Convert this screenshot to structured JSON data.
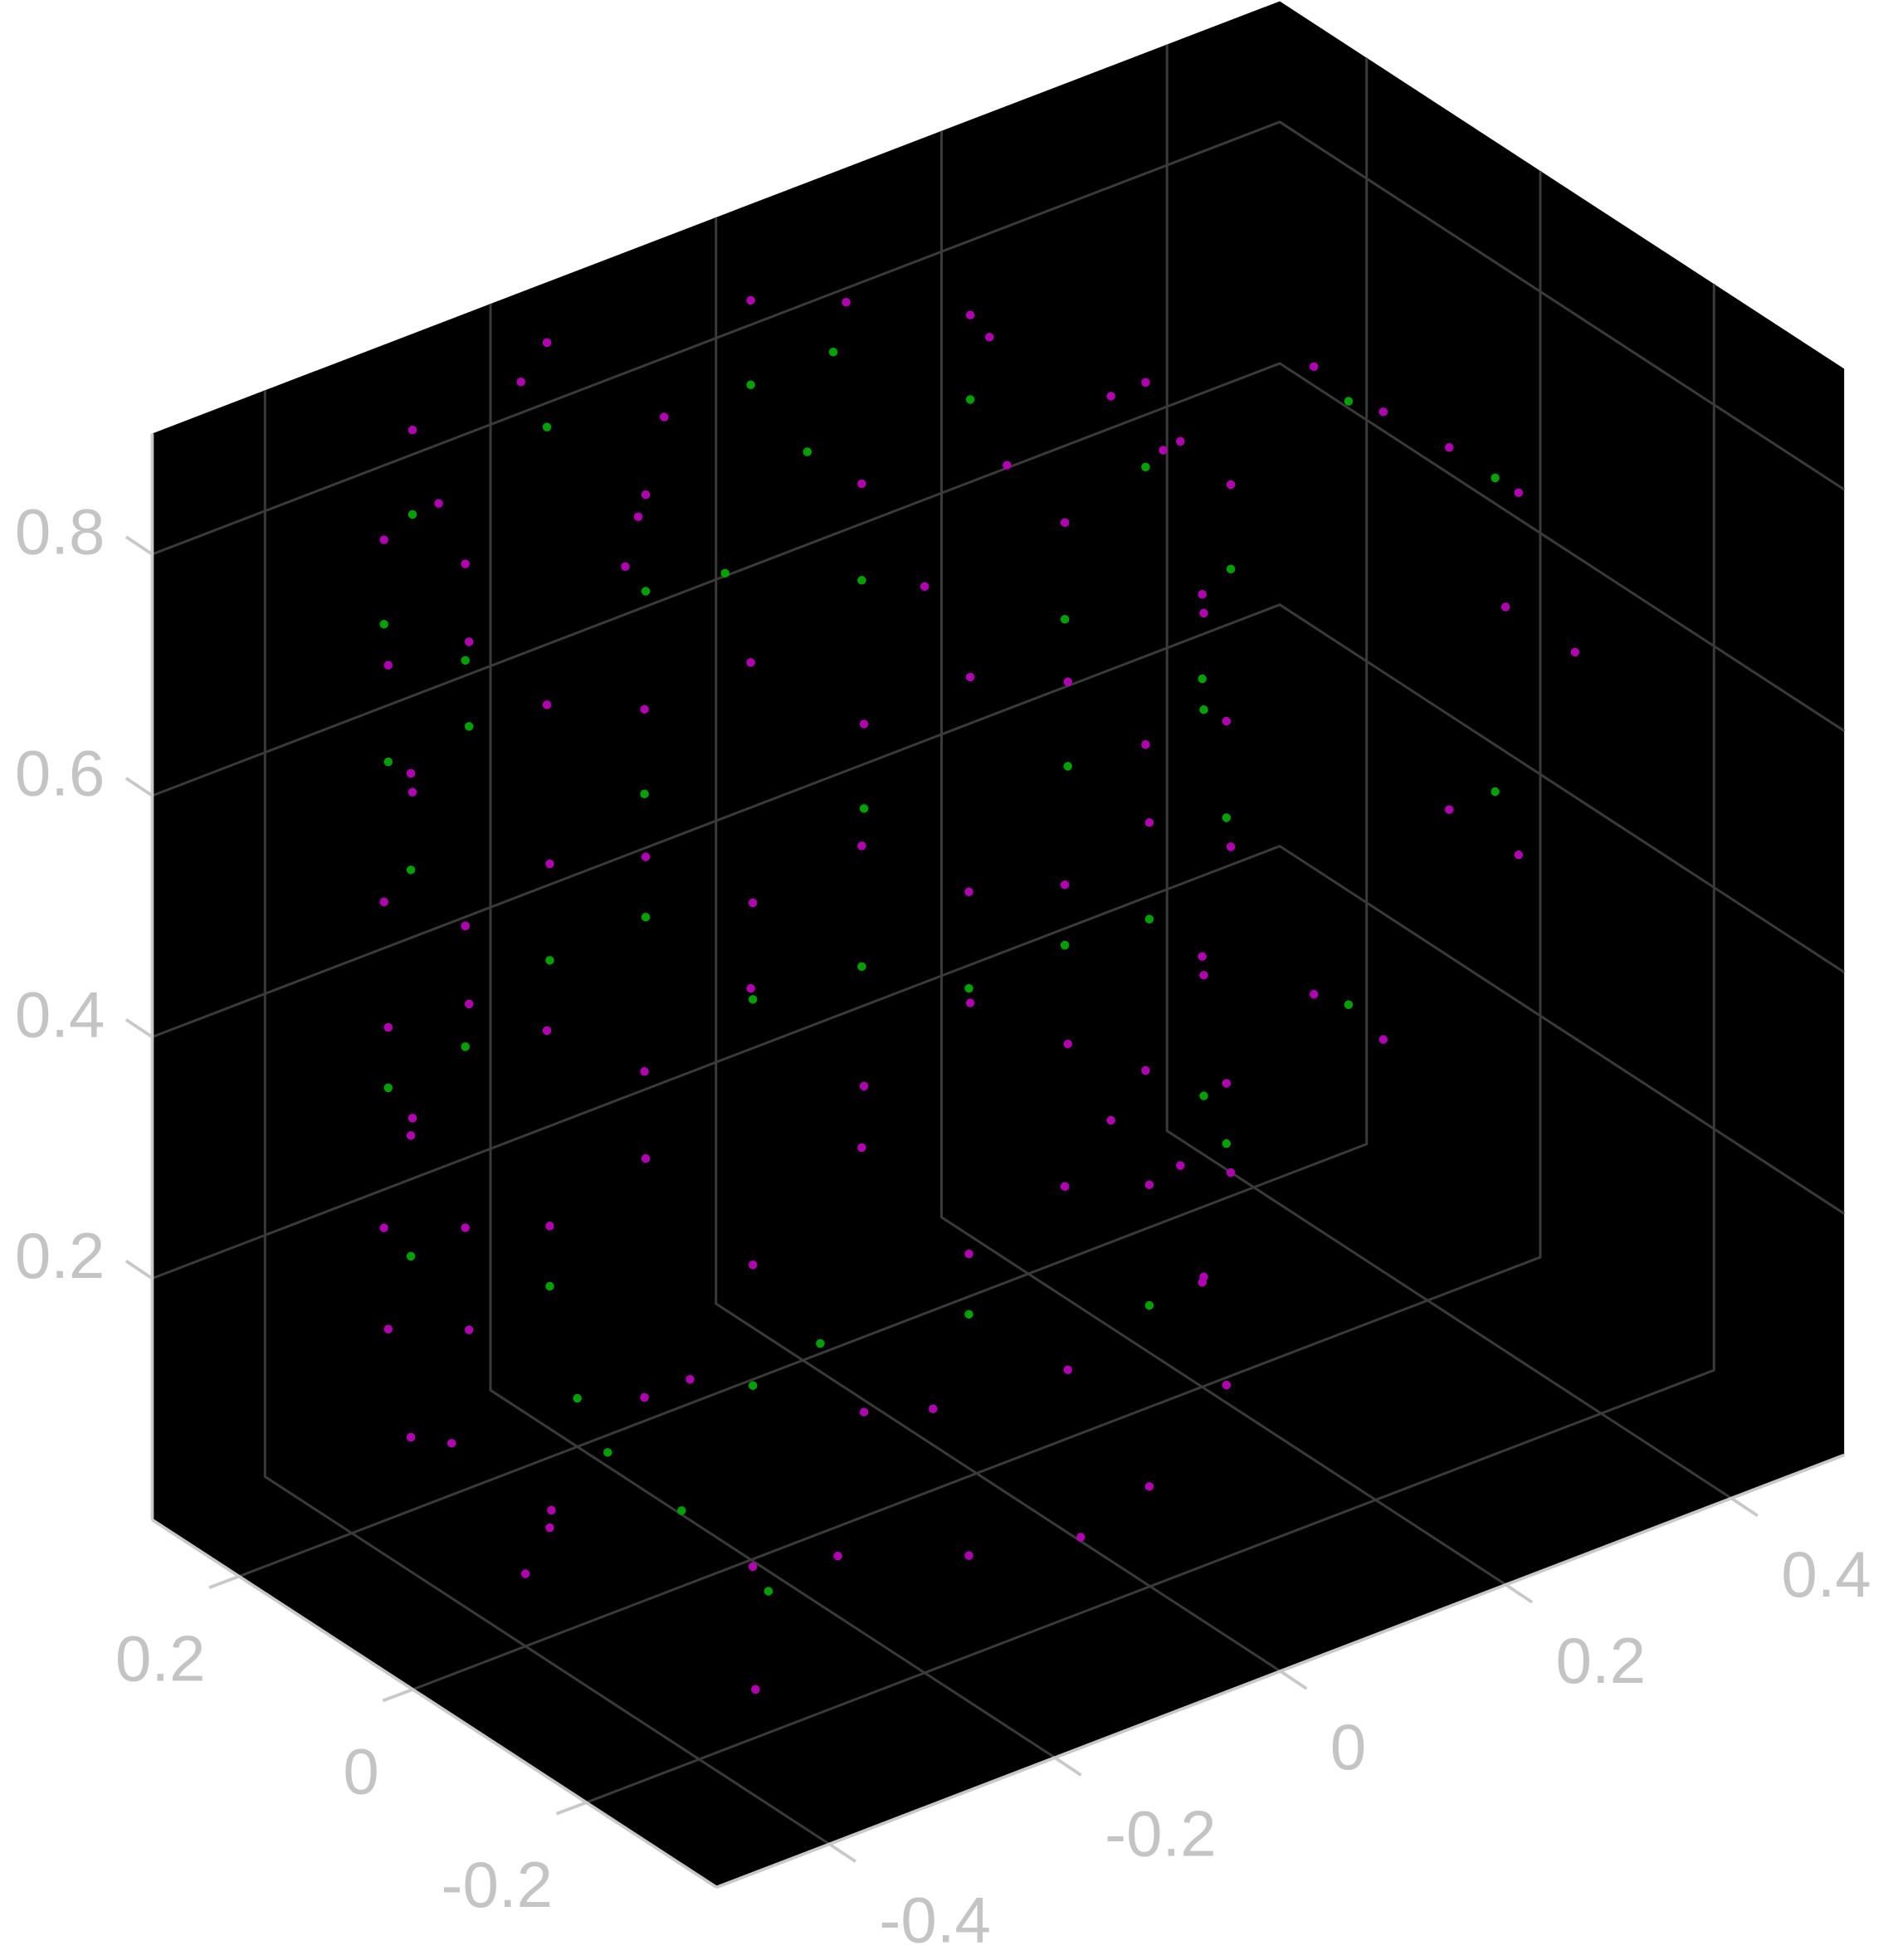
{
  "chart_data": {
    "type": "scatter3d",
    "grid": true,
    "xlim": [
      -0.35,
      0.3
    ],
    "ylim": [
      -0.5,
      0.5
    ],
    "zlim": [
      0,
      0.9
    ],
    "xticks": [
      -0.2,
      0,
      0.2
    ],
    "yticks": [
      -0.4,
      -0.2,
      0,
      0.2,
      0.4
    ],
    "zticks": [
      0.2,
      0.4,
      0.6,
      0.8
    ],
    "series": [
      {
        "color": "#b000b0",
        "x": [
          0.3,
          0.29,
          0.26,
          0.21,
          0.15,
          0.08,
          0,
          -0.08,
          -0.15,
          -0.21,
          -0.26,
          -0.29,
          -0.3,
          -0.29,
          -0.26,
          -0.21,
          -0.15,
          -0.08,
          0,
          0.08,
          0.15,
          0.21,
          0.26,
          0.29,
          0.3,
          0.29,
          0.26,
          0.21,
          0.15,
          0.08,
          0,
          -0.08,
          -0.15,
          -0.21,
          -0.26,
          -0.29,
          -0.3,
          -0.29,
          -0.26,
          -0.21,
          -0.15,
          -0.08,
          0,
          0.08,
          0.15,
          0.21,
          0.26,
          0.29,
          0.3,
          0.29,
          0.26,
          0.21,
          0.15,
          0.08,
          0,
          -0.08,
          -0.15,
          -0.21,
          -0.26,
          -0.29,
          -0.3,
          -0.29,
          -0.26,
          -0.21,
          -0.15,
          -0.08,
          0,
          0.08,
          0.15,
          0.21,
          0.26,
          0.29,
          0.1,
          -0.1,
          0,
          0.15,
          -0.2,
          0.05,
          -0.05,
          0.2,
          -0.15,
          0.1,
          0.1,
          -0.1,
          0.2,
          -0.2,
          0,
          0.15,
          -0.25,
          0.05,
          -0.04,
          -0.04,
          -0.04,
          -0.04,
          -0.04,
          -0.04,
          -0.04,
          0.04,
          0.04,
          0.04,
          0.04,
          0.04,
          0.04,
          0.04
        ],
        "y": [
          -0.15,
          -0.07,
          0,
          0.06,
          0.11,
          0.14,
          0.15,
          0.14,
          0.11,
          0.06,
          0,
          -0.07,
          -0.15,
          -0.23,
          -0.3,
          -0.36,
          -0.41,
          -0.44,
          -0.45,
          -0.44,
          -0.41,
          -0.36,
          -0.3,
          -0.23,
          -0.15,
          -0.07,
          0,
          0.06,
          0.11,
          0.14,
          0.15,
          0.14,
          0.11,
          0.06,
          0,
          -0.07,
          -0.15,
          -0.23,
          -0.3,
          -0.36,
          -0.41,
          -0.44,
          -0.45,
          -0.44,
          -0.41,
          -0.36,
          -0.3,
          -0.23,
          -0.15,
          -0.07,
          0,
          0.06,
          0.11,
          0.14,
          0.15,
          0.14,
          0.11,
          0.06,
          0,
          -0.07,
          -0.15,
          -0.23,
          -0.3,
          -0.36,
          -0.41,
          -0.44,
          -0.45,
          -0.44,
          -0.41,
          -0.36,
          -0.3,
          -0.23,
          -0.2,
          -0.05,
          -0.3,
          0,
          -0.2,
          0.05,
          -0.35,
          -0.25,
          0.05,
          -0.4,
          -0.3,
          -0.2,
          -0.1,
          -0.35,
          -0.4,
          -0.35,
          -0.1,
          0,
          0.15,
          0.33,
          0.45,
          0.5,
          0.45,
          0.33,
          0.15,
          0.15,
          0.33,
          0.45,
          0.5,
          0.45,
          0.33,
          0.15
        ],
        "z": [
          0.85,
          0.7,
          0.85,
          0.7,
          0.85,
          0.7,
          0.85,
          0.7,
          0.85,
          0.7,
          0.85,
          0.7,
          0.85,
          0.7,
          0.85,
          0.7,
          0.85,
          0.7,
          0.85,
          0.7,
          0.85,
          0.7,
          0.85,
          0.7,
          0.55,
          0.4,
          0.55,
          0.4,
          0.55,
          0.4,
          0.55,
          0.4,
          0.55,
          0.4,
          0.55,
          0.4,
          0.55,
          0.4,
          0.55,
          0.4,
          0.55,
          0.4,
          0.55,
          0.4,
          0.55,
          0.4,
          0.55,
          0.4,
          0.28,
          0.15,
          0.28,
          0.15,
          0.28,
          0.15,
          0.28,
          0.15,
          0.28,
          0.15,
          0.28,
          0.15,
          0.28,
          0.15,
          0.28,
          0.15,
          0.28,
          0.15,
          0.28,
          0.15,
          0.28,
          0.15,
          0.28,
          0.15,
          0.9,
          0.9,
          0.9,
          0.9,
          0.9,
          0.9,
          0.9,
          0.9,
          0.9,
          0.9,
          0.03,
          0.05,
          0.02,
          0.04,
          0.06,
          0.08,
          0.1,
          0.03,
          0.22,
          0.26,
          0.37,
          0.52,
          0.67,
          0.78,
          0.82,
          0.22,
          0.26,
          0.37,
          0.52,
          0.67,
          0.78,
          0.82
        ]
      },
      {
        "color": "#00a000",
        "x": [
          0.3,
          0.29,
          0.26,
          0.21,
          0.15,
          0.08,
          0,
          -0.08,
          -0.15,
          -0.21,
          -0.26,
          -0.29,
          -0.3,
          -0.29,
          -0.26,
          -0.21,
          -0.15,
          -0.08,
          0,
          0.08,
          0.15,
          0.21,
          0.26,
          0.29,
          0.29,
          0.21,
          0.08,
          -0.08,
          -0.21,
          -0.29,
          -0.29,
          -0.21,
          -0.08,
          0.08,
          0.21,
          0.29,
          0.1,
          -0.05,
          0.2,
          -0.15,
          0.05,
          0,
          0,
          0,
          0,
          0,
          0.1,
          -0.1
        ],
        "y": [
          -0.15,
          -0.07,
          0,
          0.06,
          0.11,
          0.14,
          0.15,
          0.14,
          0.11,
          0.06,
          0,
          -0.07,
          -0.15,
          -0.23,
          -0.3,
          -0.36,
          -0.41,
          -0.44,
          -0.45,
          -0.44,
          -0.41,
          -0.36,
          -0.3,
          -0.23,
          -0.07,
          0.06,
          0.14,
          0.14,
          0.06,
          -0.07,
          -0.23,
          -0.36,
          -0.44,
          -0.44,
          -0.36,
          -0.23,
          -0.25,
          -0.3,
          -0.2,
          -0.3,
          -0.1,
          0.33,
          0.46,
          0.46,
          0.33,
          -0.15,
          -0.05,
          -0.3
        ],
        "z": [
          0.78,
          0.62,
          0.78,
          0.62,
          0.78,
          0.62,
          0.78,
          0.62,
          0.78,
          0.62,
          0.78,
          0.62,
          0.78,
          0.62,
          0.78,
          0.62,
          0.78,
          0.62,
          0.78,
          0.62,
          0.78,
          0.62,
          0.78,
          0.62,
          0.35,
          0.3,
          0.35,
          0.3,
          0.35,
          0.3,
          0.35,
          0.3,
          0.35,
          0.3,
          0.35,
          0.3,
          0.06,
          0.1,
          0.04,
          0.08,
          0.12,
          0.27,
          0.4,
          0.66,
          0.77,
          0.9,
          0.9,
          0.9
        ]
      }
    ]
  }
}
